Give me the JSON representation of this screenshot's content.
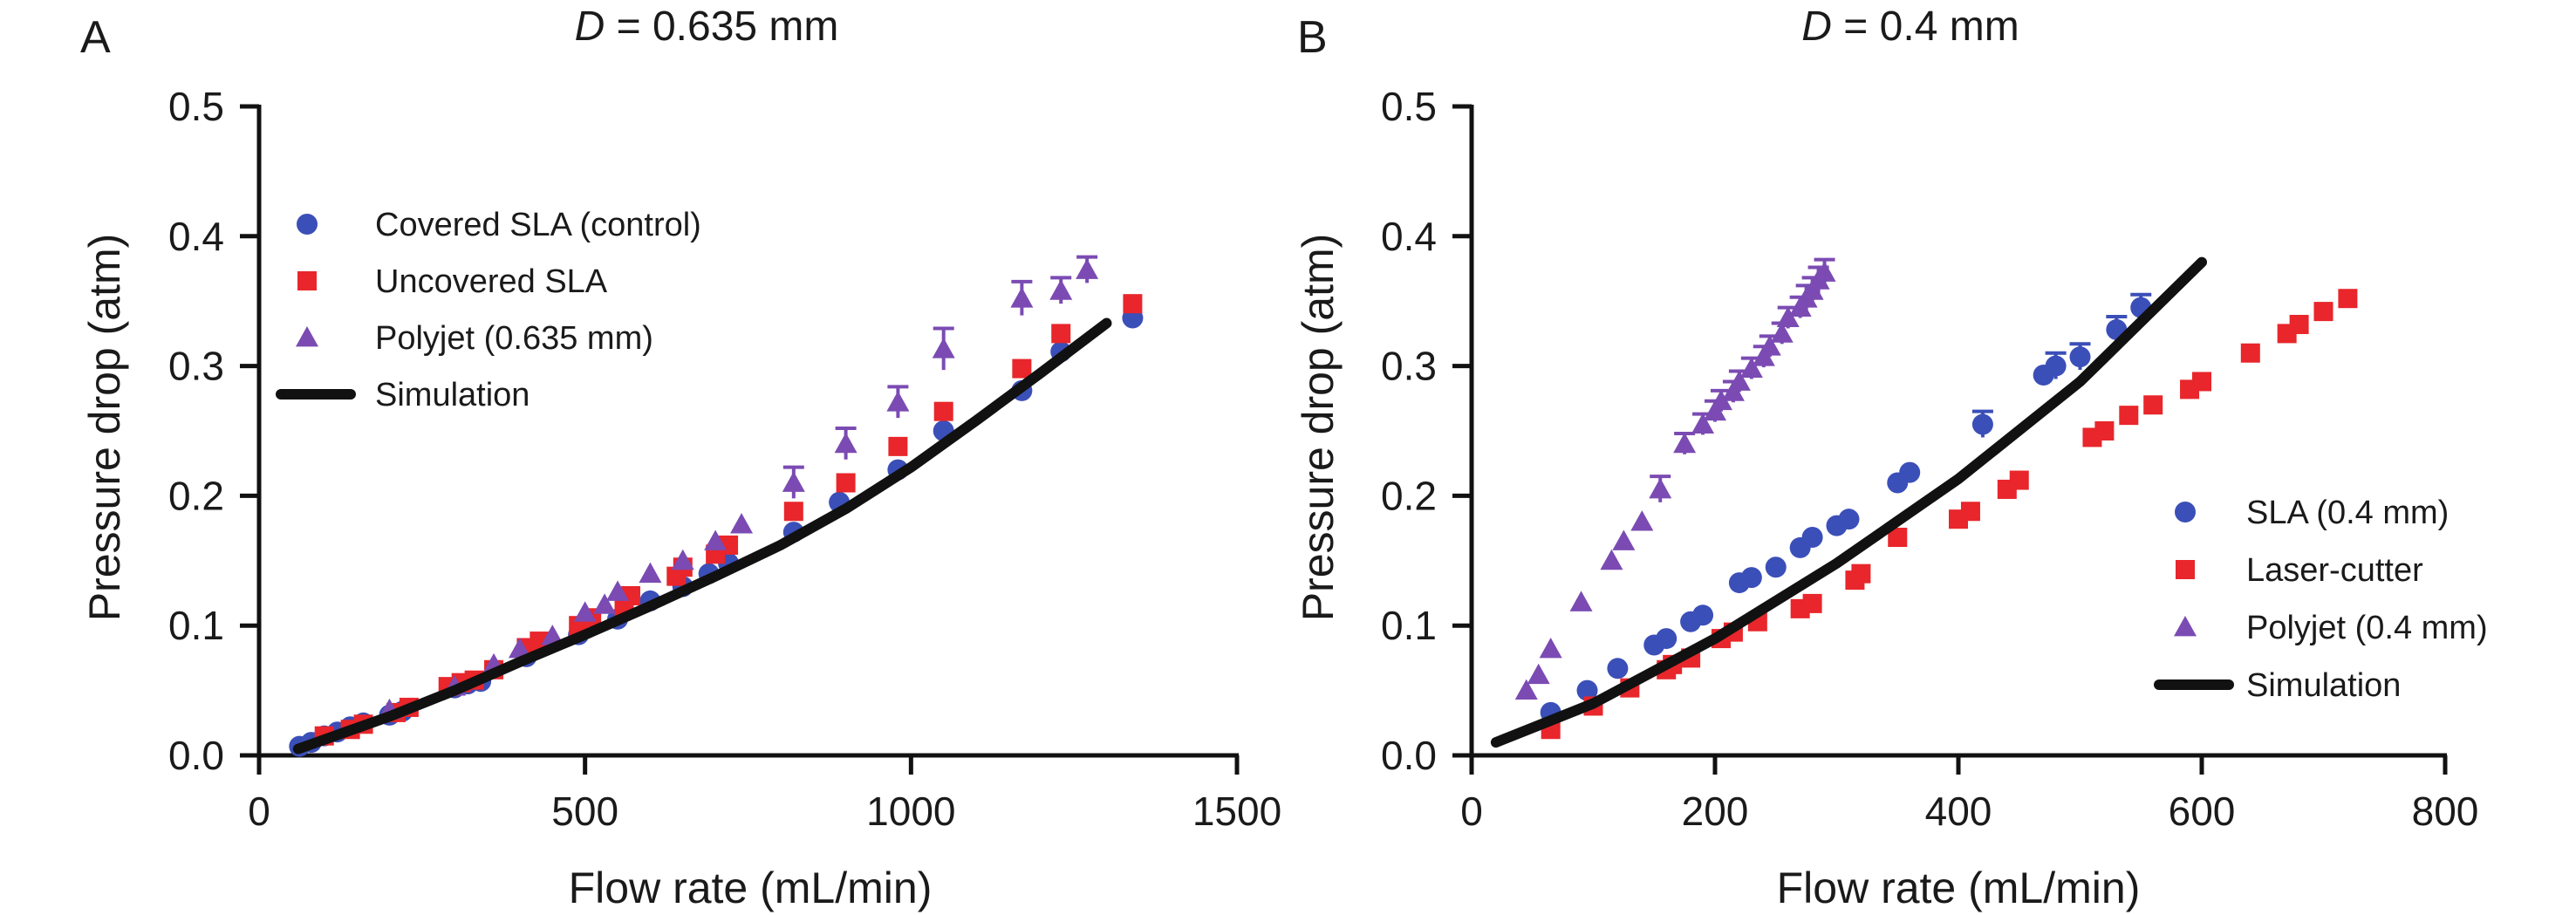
{
  "colors": {
    "sla": "#3b4fb8",
    "uncovered": "#e8262b",
    "polyjet": "#7b4bb3",
    "simulation": "#111111"
  },
  "chart_data": [
    {
      "type": "scatter",
      "panel_label": "A",
      "title_var": "D",
      "title_rest": " = 0.635 mm",
      "xlabel": "Flow rate (mL/min)",
      "ylabel": "Pressure drop (atm)",
      "xlim": [
        0,
        1500
      ],
      "ylim": [
        0,
        0.5
      ],
      "xticks": [
        "0",
        "500",
        "1000",
        "1500"
      ],
      "yticks": [
        "0.0",
        "0.1",
        "0.2",
        "0.3",
        "0.4",
        "0.5"
      ],
      "legend_position": "top-left",
      "series": [
        {
          "name": "Covered SLA (control)",
          "marker": "circle",
          "color": "#3b4fb8",
          "x": [
            62,
            80,
            100,
            120,
            140,
            160,
            200,
            220,
            300,
            320,
            340,
            410,
            490,
            550,
            600,
            650,
            690,
            720,
            820,
            890,
            980,
            1050,
            1170,
            1230,
            1340
          ],
          "y": [
            0.007,
            0.01,
            0.015,
            0.018,
            0.022,
            0.025,
            0.031,
            0.034,
            0.052,
            0.055,
            0.057,
            0.076,
            0.093,
            0.105,
            0.119,
            0.13,
            0.14,
            0.148,
            0.172,
            0.195,
            0.22,
            0.25,
            0.281,
            0.311,
            0.337
          ]
        },
        {
          "name": "Uncovered SLA",
          "marker": "square",
          "color": "#e8262b",
          "x": [
            100,
            140,
            160,
            210,
            230,
            290,
            310,
            330,
            360,
            410,
            430,
            490,
            510,
            560,
            570,
            640,
            650,
            700,
            720,
            820,
            900,
            980,
            1050,
            1170,
            1230,
            1340
          ],
          "y": [
            0.015,
            0.02,
            0.024,
            0.033,
            0.037,
            0.053,
            0.056,
            0.058,
            0.066,
            0.083,
            0.088,
            0.1,
            0.106,
            0.115,
            0.123,
            0.138,
            0.145,
            0.155,
            0.162,
            0.188,
            0.21,
            0.238,
            0.265,
            0.298,
            0.325,
            0.348
          ]
        },
        {
          "name": "Polyjet (0.635 mm)",
          "marker": "triangle",
          "color": "#7b4bb3",
          "x": [
            200,
            300,
            360,
            400,
            450,
            500,
            530,
            550,
            600,
            650,
            700,
            740,
            820,
            900,
            980,
            1050,
            1170,
            1230,
            1270
          ],
          "y": [
            0.035,
            0.053,
            0.07,
            0.082,
            0.092,
            0.11,
            0.116,
            0.126,
            0.14,
            0.15,
            0.165,
            0.178,
            0.21,
            0.24,
            0.272,
            0.313,
            0.352,
            0.358,
            0.374
          ],
          "err": [
            0,
            0,
            0,
            0,
            0,
            0,
            0,
            0,
            0,
            0,
            0,
            0,
            0.012,
            0.012,
            0.012,
            0.016,
            0.013,
            0.01,
            0.01
          ]
        },
        {
          "name": "Simulation",
          "marker": "line",
          "color": "#111111",
          "x": [
            60,
            200,
            300,
            400,
            500,
            600,
            700,
            800,
            900,
            1000,
            1100,
            1200,
            1300
          ],
          "y": [
            0.005,
            0.03,
            0.05,
            0.072,
            0.093,
            0.115,
            0.138,
            0.162,
            0.19,
            0.222,
            0.258,
            0.295,
            0.333
          ]
        }
      ]
    },
    {
      "type": "scatter",
      "panel_label": "B",
      "title_var": "D",
      "title_rest": " = 0.4 mm",
      "xlabel": "Flow rate (mL/min)",
      "ylabel": "Pressure drop (atm)",
      "xlim": [
        0,
        800
      ],
      "ylim": [
        0,
        0.5
      ],
      "xticks": [
        "0",
        "200",
        "400",
        "600",
        "800"
      ],
      "yticks": [
        "0.0",
        "0.1",
        "0.2",
        "0.3",
        "0.4",
        "0.5"
      ],
      "legend_position": "bottom-right",
      "series": [
        {
          "name": "SLA (0.4 mm)",
          "marker": "circle",
          "color": "#3b4fb8",
          "x": [
            65,
            95,
            120,
            150,
            160,
            180,
            190,
            220,
            230,
            250,
            270,
            280,
            300,
            310,
            350,
            360,
            420,
            470,
            480,
            500,
            530,
            550
          ],
          "y": [
            0.033,
            0.05,
            0.067,
            0.085,
            0.09,
            0.103,
            0.108,
            0.133,
            0.137,
            0.145,
            0.16,
            0.168,
            0.177,
            0.182,
            0.21,
            0.218,
            0.255,
            0.293,
            0.3,
            0.307,
            0.328,
            0.345
          ],
          "err": [
            0,
            0,
            0,
            0,
            0,
            0,
            0,
            0,
            0,
            0,
            0,
            0,
            0,
            0,
            0,
            0,
            0.01,
            0,
            0.01,
            0.01,
            0.01,
            0.01
          ]
        },
        {
          "name": "Laser-cutter",
          "marker": "square",
          "color": "#e8262b",
          "x": [
            65,
            100,
            130,
            160,
            165,
            180,
            205,
            215,
            235,
            270,
            280,
            315,
            320,
            350,
            400,
            410,
            440,
            450,
            510,
            520,
            540,
            560,
            590,
            600,
            640,
            670,
            680,
            700,
            720
          ],
          "y": [
            0.02,
            0.038,
            0.052,
            0.066,
            0.07,
            0.075,
            0.09,
            0.095,
            0.103,
            0.113,
            0.117,
            0.135,
            0.14,
            0.168,
            0.182,
            0.188,
            0.205,
            0.212,
            0.245,
            0.25,
            0.262,
            0.27,
            0.282,
            0.288,
            0.31,
            0.325,
            0.332,
            0.342,
            0.352
          ]
        },
        {
          "name": "Polyjet (0.4 mm)",
          "marker": "triangle",
          "color": "#7b4bb3",
          "x": [
            45,
            55,
            65,
            90,
            115,
            125,
            140,
            155,
            175,
            190,
            200,
            205,
            215,
            220,
            230,
            240,
            245,
            255,
            260,
            270,
            275,
            280,
            285,
            290
          ],
          "y": [
            0.05,
            0.062,
            0.082,
            0.118,
            0.15,
            0.165,
            0.18,
            0.205,
            0.24,
            0.255,
            0.265,
            0.273,
            0.28,
            0.288,
            0.298,
            0.307,
            0.315,
            0.325,
            0.337,
            0.345,
            0.352,
            0.358,
            0.366,
            0.372
          ],
          "err": [
            0,
            0,
            0,
            0,
            0,
            0,
            0,
            0.01,
            0.008,
            0.008,
            0.008,
            0.008,
            0.008,
            0.008,
            0.008,
            0.008,
            0.008,
            0.008,
            0.008,
            0.008,
            0.01,
            0.01,
            0.01,
            0.01
          ]
        },
        {
          "name": "Simulation",
          "marker": "line",
          "color": "#111111",
          "x": [
            20,
            100,
            200,
            300,
            400,
            500,
            600
          ],
          "y": [
            0.01,
            0.04,
            0.09,
            0.148,
            0.213,
            0.288,
            0.38
          ]
        }
      ]
    }
  ]
}
